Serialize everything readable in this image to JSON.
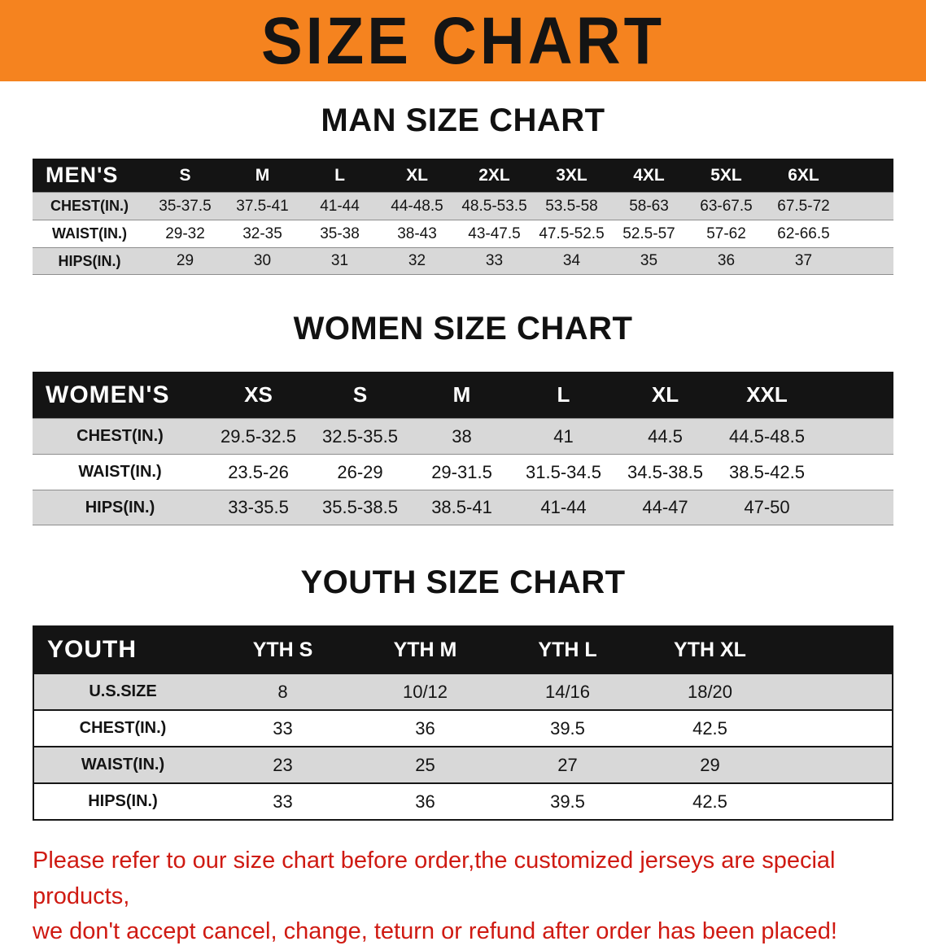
{
  "colors": {
    "banner_bg": "#f5831f",
    "header_bg": "#141414",
    "header_text": "#ffffff",
    "row_shade": "#d8d8d8",
    "note_text": "#cf1a12",
    "text": "#141414"
  },
  "banner": {
    "title": "SIZE CHART"
  },
  "men": {
    "heading": "MAN SIZE CHART",
    "table": {
      "header": [
        "MEN'S",
        "S",
        "M",
        "L",
        "XL",
        "2XL",
        "3XL",
        "4XL",
        "5XL",
        "6XL"
      ],
      "rows": [
        {
          "label": "CHEST(IN.)",
          "values": [
            "35-37.5",
            "37.5-41",
            "41-44",
            "44-48.5",
            "48.5-53.5",
            "53.5-58",
            "58-63",
            "63-67.5",
            "67.5-72"
          ]
        },
        {
          "label": "WAIST(IN.)",
          "values": [
            "29-32",
            "32-35",
            "35-38",
            "38-43",
            "43-47.5",
            "47.5-52.5",
            "52.5-57",
            "57-62",
            "62-66.5"
          ]
        },
        {
          "label": "HIPS(IN.)",
          "values": [
            "29",
            "30",
            "31",
            "32",
            "33",
            "34",
            "35",
            "36",
            "37"
          ]
        }
      ]
    }
  },
  "women": {
    "heading": "WOMEN SIZE CHART",
    "table": {
      "header": [
        "WOMEN'S",
        "XS",
        "S",
        "M",
        "L",
        "XL",
        "XXL"
      ],
      "rows": [
        {
          "label": "CHEST(IN.)",
          "values": [
            "29.5-32.5",
            "32.5-35.5",
            "38",
            "41",
            "44.5",
            "44.5-48.5"
          ]
        },
        {
          "label": "WAIST(IN.)",
          "values": [
            "23.5-26",
            "26-29",
            "29-31.5",
            "31.5-34.5",
            "34.5-38.5",
            "38.5-42.5"
          ]
        },
        {
          "label": "HIPS(IN.)",
          "values": [
            "33-35.5",
            "35.5-38.5",
            "38.5-41",
            "41-44",
            "44-47",
            "47-50"
          ]
        }
      ]
    }
  },
  "youth": {
    "heading": "YOUTH SIZE CHART",
    "table": {
      "header": [
        "YOUTH",
        "YTH S",
        "YTH M",
        "YTH L",
        "YTH XL"
      ],
      "rows": [
        {
          "label": "U.S.SIZE",
          "values": [
            "8",
            "10/12",
            "14/16",
            "18/20"
          ]
        },
        {
          "label": "CHEST(IN.)",
          "values": [
            "33",
            "36",
            "39.5",
            "42.5"
          ]
        },
        {
          "label": "WAIST(IN.)",
          "values": [
            "23",
            "25",
            "27",
            "29"
          ]
        },
        {
          "label": "HIPS(IN.)",
          "values": [
            "33",
            "36",
            "39.5",
            "42.5"
          ]
        }
      ]
    }
  },
  "footer": {
    "line1": "Please refer to our size chart before order,the customized jerseys are special products,",
    "line2": "we don't accept cancel, change, teturn or refund after order has been placed!"
  }
}
